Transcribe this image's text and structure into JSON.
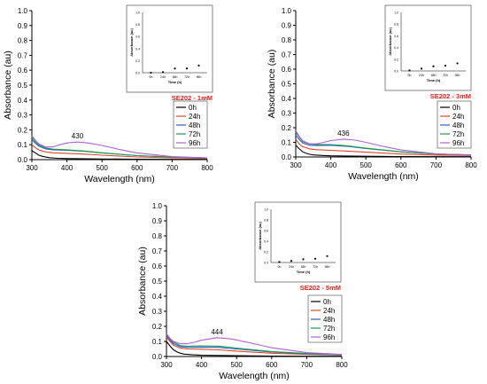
{
  "chart_data": [
    {
      "type": "line",
      "xlabel": "Wavelength (nm)",
      "ylabel": "Absorbance (au)",
      "xlim": [
        300,
        800
      ],
      "ylim": [
        0.0,
        1.0
      ],
      "xticks": [
        300,
        400,
        500,
        600,
        700,
        800
      ],
      "yticks": [
        0.0,
        0.1,
        0.2,
        0.3,
        0.4,
        0.5,
        0.6,
        0.7,
        0.8,
        0.9,
        1.0
      ],
      "peak_label": "430",
      "peak_x": 430,
      "peak_y": 0.118,
      "sample_label": "SE202 - 1mM",
      "legend_position": "right",
      "series": [
        {
          "name": "0h",
          "color": "#000000",
          "x": [
            300,
            310,
            320,
            330,
            340,
            350,
            375,
            400,
            500,
            600,
            700,
            800
          ],
          "y": [
            0.06,
            0.045,
            0.03,
            0.022,
            0.017,
            0.013,
            0.009,
            0.007,
            0.004,
            0.003,
            0.002,
            0.002
          ]
        },
        {
          "name": "24h",
          "color": "#e0452b",
          "x": [
            300,
            310,
            320,
            340,
            360,
            400,
            450,
            500,
            600,
            700,
            800
          ],
          "y": [
            0.1,
            0.08,
            0.065,
            0.052,
            0.046,
            0.042,
            0.037,
            0.03,
            0.018,
            0.012,
            0.009
          ]
        },
        {
          "name": "48h",
          "color": "#2f5fd0",
          "x": [
            300,
            310,
            320,
            340,
            360,
            400,
            450,
            500,
            600,
            700,
            800
          ],
          "y": [
            0.135,
            0.11,
            0.09,
            0.072,
            0.066,
            0.063,
            0.056,
            0.045,
            0.027,
            0.017,
            0.012
          ]
        },
        {
          "name": "72h",
          "color": "#1a9a4a",
          "x": [
            300,
            310,
            320,
            340,
            360,
            400,
            450,
            500,
            600,
            700,
            800
          ],
          "y": [
            0.15,
            0.12,
            0.098,
            0.078,
            0.07,
            0.066,
            0.058,
            0.046,
            0.027,
            0.017,
            0.012
          ]
        },
        {
          "name": "96h",
          "color": "#b060d0",
          "x": [
            300,
            310,
            320,
            340,
            360,
            380,
            400,
            430,
            460,
            500,
            550,
            600,
            700,
            800
          ],
          "y": [
            0.16,
            0.13,
            0.105,
            0.085,
            0.085,
            0.1,
            0.112,
            0.118,
            0.112,
            0.095,
            0.068,
            0.045,
            0.02,
            0.012
          ]
        }
      ],
      "inset": {
        "type": "scatter",
        "xlabel": "Time (h)",
        "ylabel": "Absorbance (au)",
        "ylim": [
          0.0,
          1.0
        ],
        "yticks": [
          0.0,
          0.2,
          0.4,
          0.6,
          0.8,
          1.0
        ],
        "categories": [
          "0h",
          "24h",
          "48h",
          "72h",
          "96h"
        ],
        "values": [
          0.0,
          0.01,
          0.07,
          0.07,
          0.12
        ]
      }
    },
    {
      "type": "line",
      "xlabel": "Wavelength (nm)",
      "ylabel": "Absorbance (au)",
      "xlim": [
        300,
        800
      ],
      "ylim": [
        0.0,
        1.0
      ],
      "xticks": [
        300,
        400,
        500,
        600,
        700,
        800
      ],
      "yticks": [
        0.0,
        0.1,
        0.2,
        0.3,
        0.4,
        0.5,
        0.6,
        0.7,
        0.8,
        0.9,
        1.0
      ],
      "peak_label": "436",
      "peak_x": 436,
      "peak_y": 0.122,
      "sample_label": "SE202 - 3mM",
      "legend_position": "right",
      "series": [
        {
          "name": "0h",
          "color": "#000000",
          "x": [
            300,
            310,
            320,
            330,
            340,
            350,
            375,
            400,
            500,
            600,
            700,
            800
          ],
          "y": [
            0.08,
            0.055,
            0.035,
            0.025,
            0.018,
            0.014,
            0.01,
            0.008,
            0.005,
            0.003,
            0.002,
            0.002
          ]
        },
        {
          "name": "24h",
          "color": "#e0452b",
          "x": [
            300,
            310,
            320,
            340,
            360,
            400,
            450,
            500,
            600,
            700,
            800
          ],
          "y": [
            0.12,
            0.09,
            0.07,
            0.055,
            0.05,
            0.045,
            0.04,
            0.033,
            0.02,
            0.013,
            0.01
          ]
        },
        {
          "name": "48h",
          "color": "#2f5fd0",
          "x": [
            300,
            310,
            320,
            340,
            360,
            400,
            450,
            500,
            600,
            700,
            800
          ],
          "y": [
            0.15,
            0.12,
            0.095,
            0.08,
            0.078,
            0.08,
            0.072,
            0.058,
            0.035,
            0.02,
            0.014
          ]
        },
        {
          "name": "72h",
          "color": "#1a9a4a",
          "x": [
            300,
            310,
            320,
            340,
            360,
            400,
            450,
            500,
            600,
            700,
            800
          ],
          "y": [
            0.17,
            0.135,
            0.105,
            0.088,
            0.085,
            0.085,
            0.076,
            0.06,
            0.035,
            0.02,
            0.014
          ]
        },
        {
          "name": "96h",
          "color": "#b060d0",
          "x": [
            300,
            310,
            320,
            340,
            360,
            380,
            400,
            436,
            470,
            500,
            550,
            600,
            700,
            800
          ],
          "y": [
            0.18,
            0.14,
            0.11,
            0.09,
            0.09,
            0.1,
            0.112,
            0.122,
            0.115,
            0.1,
            0.072,
            0.048,
            0.022,
            0.013
          ]
        }
      ],
      "inset": {
        "type": "scatter",
        "xlabel": "Time (h)",
        "ylabel": "Absorbance (au)",
        "ylim": [
          0.0,
          1.0
        ],
        "yticks": [
          0.0,
          0.2,
          0.4,
          0.6,
          0.8,
          1.0
        ],
        "categories": [
          "0h",
          "24h",
          "48h",
          "72h",
          "96h"
        ],
        "values": [
          0.01,
          0.04,
          0.08,
          0.09,
          0.13
        ]
      }
    },
    {
      "type": "line",
      "xlabel": "Wavelength (nm)",
      "ylabel": "Absorbance (au)",
      "xlim": [
        300,
        800
      ],
      "ylim": [
        0.0,
        1.0
      ],
      "xticks": [
        300,
        400,
        500,
        600,
        700,
        800
      ],
      "yticks": [
        0.0,
        0.1,
        0.2,
        0.3,
        0.4,
        0.5,
        0.6,
        0.7,
        0.8,
        0.9,
        1.0
      ],
      "peak_label": "444",
      "peak_x": 444,
      "peak_y": 0.125,
      "sample_label": "SE202 - 5mM",
      "legend_position": "right",
      "series": [
        {
          "name": "0h",
          "color": "#000000",
          "x": [
            300,
            310,
            320,
            330,
            340,
            350,
            375,
            400,
            500,
            600,
            700,
            800
          ],
          "y": [
            0.1,
            0.07,
            0.045,
            0.03,
            0.022,
            0.016,
            0.011,
            0.008,
            0.005,
            0.003,
            0.002,
            0.002
          ]
        },
        {
          "name": "24h",
          "color": "#e0452b",
          "x": [
            300,
            310,
            320,
            340,
            360,
            400,
            450,
            500,
            600,
            700,
            800
          ],
          "y": [
            0.13,
            0.1,
            0.075,
            0.055,
            0.05,
            0.048,
            0.044,
            0.036,
            0.022,
            0.014,
            0.01
          ]
        },
        {
          "name": "48h",
          "color": "#2f5fd0",
          "x": [
            300,
            310,
            320,
            340,
            360,
            400,
            450,
            500,
            600,
            700,
            800
          ],
          "y": [
            0.14,
            0.11,
            0.085,
            0.065,
            0.06,
            0.062,
            0.06,
            0.05,
            0.03,
            0.018,
            0.012
          ]
        },
        {
          "name": "72h",
          "color": "#1a9a4a",
          "x": [
            300,
            310,
            320,
            340,
            360,
            400,
            450,
            500,
            600,
            700,
            800
          ],
          "y": [
            0.15,
            0.12,
            0.095,
            0.072,
            0.068,
            0.07,
            0.068,
            0.056,
            0.033,
            0.02,
            0.013
          ]
        },
        {
          "name": "96h",
          "color": "#b060d0",
          "x": [
            300,
            310,
            320,
            340,
            360,
            380,
            400,
            444,
            480,
            500,
            550,
            600,
            700,
            800
          ],
          "y": [
            0.15,
            0.12,
            0.1,
            0.085,
            0.085,
            0.095,
            0.108,
            0.125,
            0.118,
            0.11,
            0.085,
            0.058,
            0.026,
            0.014
          ]
        }
      ],
      "inset": {
        "type": "scatter",
        "xlabel": "Time (h)",
        "ylabel": "Absorbance (au)",
        "ylim": [
          0.0,
          1.0
        ],
        "yticks": [
          0.0,
          0.2,
          0.4,
          0.6,
          0.8,
          1.0
        ],
        "categories": [
          "0h",
          "24h",
          "48h",
          "72h",
          "96h"
        ],
        "values": [
          0.01,
          0.03,
          0.06,
          0.07,
          0.12
        ]
      }
    }
  ]
}
